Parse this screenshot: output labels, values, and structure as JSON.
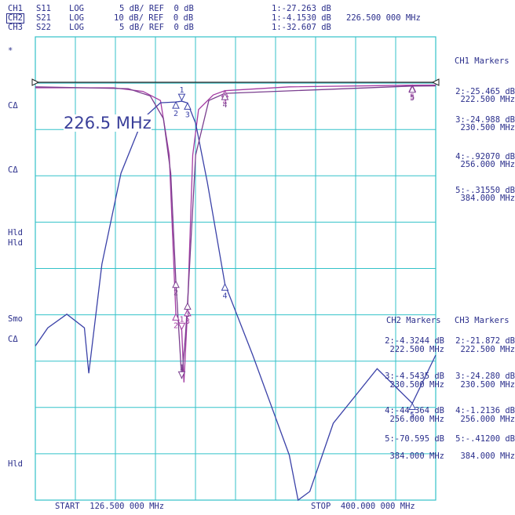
{
  "colors": {
    "grid": "#33c2c9",
    "trace_s11": "#a33ca3",
    "trace_s21": "#3b42a8",
    "trace_s22": "#7a3f8f",
    "text": "#2b2f8c"
  },
  "header": {
    "channels": [
      {
        "ch": "CH1",
        "param": "S11",
        "fmt": "LOG",
        "scale": "5 dB/ REF  0 dB",
        "readout": "1:-27.263 dB"
      },
      {
        "ch": "CH2",
        "param": "S21",
        "fmt": "LOG",
        "scale": "10 dB/ REF  0 dB",
        "readout": "1:-4.1530 dB"
      },
      {
        "ch": "CH3",
        "param": "S22",
        "fmt": "LOG",
        "scale": "5 dB/ REF  0 dB",
        "readout": "1:-32.607 dB"
      }
    ],
    "marker_freq": "226.500 000 MHz"
  },
  "annotations": {
    "star": "*",
    "left_labels": [
      "CΔ",
      "CΔ",
      "Hld",
      "Hld",
      "Smo",
      "CΔ",
      "Hld"
    ],
    "big_freq": "226.5 MHz"
  },
  "ch1_markers": {
    "title": "CH1 Markers",
    "items": [
      {
        "v": "2:-25.465 dB",
        "f": "222.500 MHz"
      },
      {
        "v": "3:-24.988 dB",
        "f": "230.500 MHz"
      },
      {
        "v": "4:-.92070 dB",
        "f": "256.000 MHz"
      },
      {
        "v": "5:-.31550 dB",
        "f": "384.000 MHz"
      }
    ]
  },
  "ch2_markers": {
    "title": "CH2 Markers",
    "items": [
      {
        "v": "2:-4.3244 dB",
        "f": "222.500 MHz"
      },
      {
        "v": "3:-4.5435 dB",
        "f": "230.500 MHz"
      },
      {
        "v": "4:-44.364 dB",
        "f": "256.000 MHz"
      },
      {
        "v": "5:-70.595 dB",
        "f": "384.000 MHz"
      }
    ]
  },
  "ch3_markers": {
    "title": "CH3 Markers",
    "items": [
      {
        "v": "2:-21.872 dB",
        "f": "222.500 MHz"
      },
      {
        "v": "3:-24.280 dB",
        "f": "230.500 MHz"
      },
      {
        "v": "4:-1.2136 dB",
        "f": "256.000 MHz"
      },
      {
        "v": "5:-.41200 dB",
        "f": "384.000 MHz"
      }
    ]
  },
  "footer": {
    "start": "START  126.500 000 MHz",
    "stop": "STOP  400.000 000 MHz"
  },
  "chart_data": {
    "type": "line",
    "x_range_mhz": [
      126.5,
      400
    ],
    "grid": true,
    "series": [
      {
        "name": "S11",
        "points": [
          [
            126.5,
            -0.6
          ],
          [
            180,
            -0.6
          ],
          [
            200,
            -1.0
          ],
          [
            212,
            -2.0
          ],
          [
            218,
            -8
          ],
          [
            222.5,
            -25.465
          ],
          [
            226.5,
            -27.263
          ],
          [
            228,
            -33
          ],
          [
            230.5,
            -24.988
          ],
          [
            234,
            -8
          ],
          [
            238,
            -3
          ],
          [
            248,
            -1.4
          ],
          [
            256,
            -0.9207
          ],
          [
            300,
            -0.5
          ],
          [
            384,
            -0.3155
          ],
          [
            400,
            -0.3
          ]
        ]
      },
      {
        "name": "S21",
        "points": [
          [
            126.5,
            -58
          ],
          [
            135,
            -54
          ],
          [
            148,
            -51
          ],
          [
            160,
            -54
          ],
          [
            163,
            -64
          ],
          [
            172,
            -40
          ],
          [
            185,
            -20
          ],
          [
            200,
            -8
          ],
          [
            212,
            -4.5
          ],
          [
            222.5,
            -4.3244
          ],
          [
            226.5,
            -4.153
          ],
          [
            230.5,
            -4.5435
          ],
          [
            236,
            -9
          ],
          [
            244,
            -22
          ],
          [
            256,
            -44.364
          ],
          [
            275,
            -60
          ],
          [
            300,
            -82
          ],
          [
            306,
            -96
          ],
          [
            314,
            -90
          ],
          [
            330,
            -75
          ],
          [
            360,
            -63
          ],
          [
            384,
            -70.595
          ],
          [
            400,
            -60
          ]
        ]
      },
      {
        "name": "S22",
        "points": [
          [
            126.5,
            -0.5
          ],
          [
            190,
            -0.7
          ],
          [
            205,
            -1.5
          ],
          [
            214,
            -4
          ],
          [
            219,
            -10
          ],
          [
            222.5,
            -21.872
          ],
          [
            226.5,
            -32.607
          ],
          [
            229,
            -28
          ],
          [
            230.5,
            -24.28
          ],
          [
            236,
            -8
          ],
          [
            245,
            -2
          ],
          [
            256,
            -1.2136
          ],
          [
            384,
            -0.412
          ],
          [
            400,
            -0.4
          ]
        ]
      }
    ],
    "markers": [
      {
        "n": "1",
        "x": 226.5
      },
      {
        "n": "2",
        "x": 222.5
      },
      {
        "n": "3",
        "x": 230.5
      },
      {
        "n": "4",
        "x": 256
      },
      {
        "n": "5",
        "x": 384
      }
    ]
  }
}
